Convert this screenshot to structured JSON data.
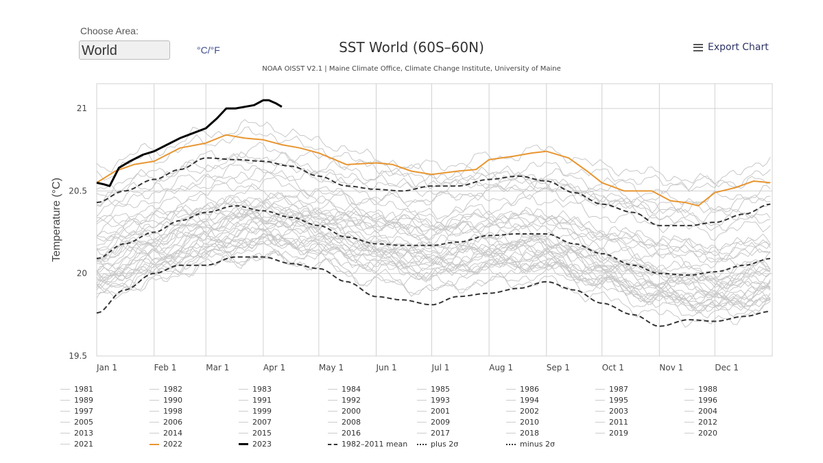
{
  "controls": {
    "choose_area_label": "Choose Area:",
    "area_value": "World",
    "unit_toggle": "°C/°F",
    "export_label": "Export Chart",
    "export_icon": "menu-icon"
  },
  "colors": {
    "year_line": "#c8c8c8",
    "highlight_2022": "#e8952f",
    "highlight_2023": "#000000",
    "stat_line": "#333333",
    "grid": "#d0d0d0"
  },
  "chart_data": {
    "type": "line",
    "title": "SST World (60S–60N)",
    "subtitle": "NOAA OISST V2.1 | Maine Climate Office, Climate Change Institute, University of Maine",
    "xlabel": "",
    "ylabel": "Temperature (°C)",
    "ylim": [
      19.5,
      21.15
    ],
    "xlim_days": [
      0,
      365
    ],
    "yticks": [
      19.5,
      20,
      20.5,
      21
    ],
    "ytick_labels": [
      "19.5",
      "20",
      "20.5",
      "21"
    ],
    "xticks_days": [
      0,
      31,
      59,
      90,
      120,
      151,
      181,
      212,
      243,
      273,
      304,
      334
    ],
    "xtick_labels": [
      "Jan 1",
      "Feb 1",
      "Mar 1",
      "Apr 1",
      "May 1",
      "Jun 1",
      "Jul 1",
      "Aug 1",
      "Sep 1",
      "Oct 1",
      "Nov 1",
      "Dec 1"
    ],
    "grid": true,
    "legend_position": "bottom",
    "x_days_monthly": [
      0,
      31,
      59,
      90,
      120,
      151,
      181,
      212,
      243,
      273,
      304,
      334,
      364
    ],
    "highlight_series": [
      {
        "name": "2022",
        "style": "solid-orange",
        "x": [
          0,
          10,
          20,
          31,
          45,
          59,
          70,
          80,
          90,
          100,
          110,
          120,
          135,
          151,
          160,
          170,
          181,
          195,
          205,
          212,
          225,
          235,
          243,
          255,
          265,
          273,
          285,
          300,
          310,
          318,
          325,
          334,
          345,
          355,
          364
        ],
        "y": [
          20.55,
          20.62,
          20.66,
          20.68,
          20.76,
          20.79,
          20.84,
          20.82,
          20.81,
          20.78,
          20.76,
          20.73,
          20.66,
          20.67,
          20.66,
          20.62,
          20.6,
          20.62,
          20.63,
          20.69,
          20.71,
          20.73,
          20.74,
          20.7,
          20.62,
          20.55,
          20.5,
          20.5,
          20.44,
          20.43,
          20.41,
          20.49,
          20.52,
          20.56,
          20.55
        ]
      },
      {
        "name": "2023",
        "style": "solid-black-thick",
        "x": [
          0,
          4,
          7,
          12,
          18,
          25,
          31,
          38,
          45,
          52,
          59,
          65,
          70,
          75,
          80,
          85,
          90,
          93,
          97,
          100
        ],
        "y": [
          20.55,
          20.54,
          20.53,
          20.64,
          20.68,
          20.72,
          20.74,
          20.78,
          20.82,
          20.85,
          20.88,
          20.94,
          21.0,
          21.0,
          21.01,
          21.02,
          21.05,
          21.05,
          21.03,
          21.01
        ]
      }
    ],
    "stat_series": [
      {
        "name": "1982–2011 mean",
        "style": "dashed",
        "x": [
          0,
          15,
          31,
          45,
          59,
          75,
          90,
          105,
          120,
          135,
          151,
          165,
          181,
          195,
          212,
          228,
          243,
          258,
          273,
          290,
          304,
          320,
          334,
          350,
          364
        ],
        "y": [
          20.09,
          20.18,
          20.25,
          20.32,
          20.37,
          20.41,
          20.38,
          20.34,
          20.29,
          20.22,
          20.18,
          20.17,
          20.17,
          20.19,
          20.23,
          20.24,
          20.24,
          20.18,
          20.12,
          20.05,
          20.0,
          19.99,
          20.01,
          20.05,
          20.09
        ]
      },
      {
        "name": "plus 2σ",
        "style": "dash-dot",
        "x": [
          0,
          15,
          31,
          45,
          59,
          75,
          90,
          105,
          120,
          135,
          151,
          165,
          181,
          195,
          212,
          228,
          243,
          258,
          273,
          290,
          304,
          320,
          334,
          350,
          364
        ],
        "y": [
          20.43,
          20.5,
          20.57,
          20.63,
          20.7,
          20.69,
          20.68,
          20.65,
          20.59,
          20.53,
          20.51,
          20.5,
          20.53,
          20.53,
          20.57,
          20.59,
          20.56,
          20.49,
          20.42,
          20.37,
          20.29,
          20.29,
          20.31,
          20.36,
          20.42
        ]
      },
      {
        "name": "minus 2σ",
        "style": "dash-dot",
        "x": [
          0,
          15,
          31,
          45,
          59,
          75,
          90,
          105,
          120,
          135,
          151,
          165,
          181,
          195,
          212,
          228,
          243,
          258,
          273,
          290,
          304,
          320,
          334,
          350,
          364
        ],
        "y": [
          19.76,
          19.9,
          20.0,
          20.05,
          20.05,
          20.1,
          20.1,
          20.06,
          20.03,
          19.95,
          19.86,
          19.84,
          19.81,
          19.86,
          19.88,
          19.91,
          19.95,
          19.9,
          19.82,
          19.75,
          19.68,
          19.72,
          19.71,
          19.74,
          19.77
        ]
      }
    ],
    "year_series": [
      {
        "name": "1981",
        "y": [
          19.85,
          19.95,
          20.05,
          20.1,
          20.05,
          19.95,
          19.9,
          19.95,
          20.0,
          19.9,
          19.8,
          19.75,
          19.8
        ]
      },
      {
        "name": "1982",
        "y": [
          19.9,
          20.0,
          20.1,
          20.15,
          20.1,
          20.0,
          19.95,
          20.0,
          20.05,
          19.95,
          19.85,
          19.8,
          19.85
        ]
      },
      {
        "name": "1983",
        "y": [
          20.15,
          20.25,
          20.35,
          20.35,
          20.25,
          20.15,
          20.1,
          20.15,
          20.15,
          20.05,
          19.95,
          19.9,
          19.95
        ]
      },
      {
        "name": "1984",
        "y": [
          19.95,
          20.05,
          20.15,
          20.2,
          20.15,
          20.05,
          20.0,
          20.05,
          20.05,
          19.95,
          19.85,
          19.8,
          19.85
        ]
      },
      {
        "name": "1985",
        "y": [
          19.9,
          20.0,
          20.1,
          20.1,
          20.05,
          19.95,
          19.9,
          19.95,
          19.95,
          19.85,
          19.75,
          19.7,
          19.8
        ]
      },
      {
        "name": "1986",
        "y": [
          19.95,
          20.05,
          20.15,
          20.2,
          20.15,
          20.1,
          20.05,
          20.1,
          20.15,
          20.05,
          20.0,
          19.95,
          20.05
        ]
      },
      {
        "name": "1987",
        "y": [
          20.1,
          20.2,
          20.3,
          20.35,
          20.3,
          20.25,
          20.2,
          20.25,
          20.25,
          20.15,
          20.05,
          20.0,
          20.05
        ]
      },
      {
        "name": "1988",
        "y": [
          20.1,
          20.2,
          20.25,
          20.3,
          20.2,
          20.1,
          20.0,
          20.05,
          20.05,
          19.95,
          19.85,
          19.8,
          19.85
        ]
      },
      {
        "name": "1989",
        "y": [
          19.85,
          19.95,
          20.05,
          20.1,
          20.1,
          20.05,
          20.0,
          20.05,
          20.1,
          20.0,
          19.9,
          19.85,
          19.9
        ]
      },
      {
        "name": "1990",
        "y": [
          20.0,
          20.1,
          20.2,
          20.25,
          20.25,
          20.15,
          20.1,
          20.15,
          20.2,
          20.1,
          20.0,
          19.95,
          20.05
        ]
      },
      {
        "name": "1991",
        "y": [
          20.05,
          20.15,
          20.25,
          20.3,
          20.25,
          20.15,
          20.1,
          20.15,
          20.15,
          20.05,
          19.95,
          19.95,
          20.0
        ]
      },
      {
        "name": "1992",
        "y": [
          20.15,
          20.25,
          20.35,
          20.4,
          20.3,
          20.15,
          20.05,
          20.05,
          20.05,
          19.95,
          19.85,
          19.8,
          19.85
        ]
      },
      {
        "name": "1993",
        "y": [
          20.0,
          20.1,
          20.2,
          20.25,
          20.2,
          20.1,
          20.05,
          20.1,
          20.1,
          20.0,
          19.9,
          19.85,
          19.9
        ]
      },
      {
        "name": "1994",
        "y": [
          20.0,
          20.1,
          20.2,
          20.25,
          20.25,
          20.15,
          20.1,
          20.15,
          20.2,
          20.1,
          20.05,
          20.0,
          20.05
        ]
      },
      {
        "name": "1995",
        "y": [
          20.1,
          20.2,
          20.3,
          20.35,
          20.3,
          20.2,
          20.15,
          20.15,
          20.15,
          20.05,
          19.95,
          19.9,
          19.95
        ]
      },
      {
        "name": "1996",
        "y": [
          19.95,
          20.05,
          20.15,
          20.2,
          20.15,
          20.05,
          20.0,
          20.05,
          20.05,
          19.95,
          19.85,
          19.85,
          19.9
        ]
      },
      {
        "name": "1997",
        "y": [
          20.0,
          20.1,
          20.2,
          20.3,
          20.35,
          20.35,
          20.35,
          20.45,
          20.5,
          20.45,
          20.4,
          20.4,
          20.45
        ]
      },
      {
        "name": "1998",
        "y": [
          20.5,
          20.6,
          20.65,
          20.7,
          20.6,
          20.45,
          20.3,
          20.25,
          20.2,
          20.05,
          19.95,
          19.9,
          19.95
        ]
      },
      {
        "name": "1999",
        "y": [
          19.95,
          20.05,
          20.15,
          20.2,
          20.15,
          20.05,
          20.0,
          20.05,
          20.05,
          19.95,
          19.85,
          19.8,
          19.85
        ]
      },
      {
        "name": "2000",
        "y": [
          19.9,
          20.0,
          20.1,
          20.2,
          20.15,
          20.1,
          20.05,
          20.1,
          20.1,
          20.0,
          19.9,
          19.85,
          19.9
        ]
      },
      {
        "name": "2001",
        "y": [
          20.05,
          20.15,
          20.25,
          20.3,
          20.3,
          20.2,
          20.15,
          20.2,
          20.2,
          20.1,
          20.0,
          19.95,
          20.0
        ]
      },
      {
        "name": "2002",
        "y": [
          20.15,
          20.25,
          20.35,
          20.4,
          20.35,
          20.3,
          20.25,
          20.3,
          20.3,
          20.2,
          20.15,
          20.1,
          20.15
        ]
      },
      {
        "name": "2003",
        "y": [
          20.25,
          20.35,
          20.4,
          20.45,
          20.4,
          20.3,
          20.25,
          20.3,
          20.3,
          20.2,
          20.1,
          20.05,
          20.1
        ]
      },
      {
        "name": "2004",
        "y": [
          20.2,
          20.3,
          20.35,
          20.4,
          20.35,
          20.3,
          20.25,
          20.3,
          20.3,
          20.2,
          20.15,
          20.1,
          20.15
        ]
      },
      {
        "name": "2005",
        "y": [
          20.25,
          20.35,
          20.45,
          20.5,
          20.45,
          20.35,
          20.3,
          20.35,
          20.35,
          20.25,
          20.15,
          20.1,
          20.15
        ]
      },
      {
        "name": "2006",
        "y": [
          20.1,
          20.2,
          20.3,
          20.35,
          20.35,
          20.3,
          20.25,
          20.3,
          20.35,
          20.25,
          20.2,
          20.15,
          20.2
        ]
      },
      {
        "name": "2007",
        "y": [
          20.3,
          20.35,
          20.4,
          20.4,
          20.3,
          20.2,
          20.1,
          20.1,
          20.05,
          19.95,
          19.85,
          19.8,
          19.85
        ]
      },
      {
        "name": "2008",
        "y": [
          19.95,
          20.05,
          20.15,
          20.2,
          20.2,
          20.15,
          20.15,
          20.2,
          20.2,
          20.1,
          20.0,
          19.95,
          20.0
        ]
      },
      {
        "name": "2009",
        "y": [
          20.1,
          20.2,
          20.3,
          20.35,
          20.35,
          20.35,
          20.35,
          20.4,
          20.45,
          20.35,
          20.3,
          20.25,
          20.3
        ]
      },
      {
        "name": "2010",
        "y": [
          20.35,
          20.45,
          20.55,
          20.6,
          20.5,
          20.35,
          20.2,
          20.15,
          20.1,
          20.0,
          19.9,
          19.85,
          19.9
        ]
      },
      {
        "name": "2011",
        "y": [
          19.95,
          20.05,
          20.15,
          20.2,
          20.2,
          20.15,
          20.15,
          20.2,
          20.2,
          20.1,
          20.0,
          19.95,
          20.0
        ]
      },
      {
        "name": "2012",
        "y": [
          20.05,
          20.15,
          20.25,
          20.35,
          20.35,
          20.3,
          20.3,
          20.35,
          20.35,
          20.25,
          20.2,
          20.15,
          20.2
        ]
      },
      {
        "name": "2013",
        "y": [
          20.2,
          20.3,
          20.4,
          20.45,
          20.4,
          20.3,
          20.3,
          20.35,
          20.35,
          20.25,
          20.2,
          20.15,
          20.2
        ]
      },
      {
        "name": "2014",
        "y": [
          20.2,
          20.3,
          20.4,
          20.45,
          20.45,
          20.45,
          20.45,
          20.5,
          20.5,
          20.45,
          20.4,
          20.35,
          20.4
        ]
      },
      {
        "name": "2015",
        "y": [
          20.4,
          20.5,
          20.55,
          20.6,
          20.6,
          20.55,
          20.55,
          20.6,
          20.65,
          20.6,
          20.55,
          20.55,
          20.6
        ]
      },
      {
        "name": "2016",
        "y": [
          20.65,
          20.75,
          20.85,
          20.9,
          20.8,
          20.7,
          20.6,
          20.6,
          20.55,
          20.45,
          20.35,
          20.3,
          20.35
        ]
      },
      {
        "name": "2017",
        "y": [
          20.4,
          20.5,
          20.6,
          20.65,
          20.6,
          20.55,
          20.5,
          20.55,
          20.55,
          20.45,
          20.35,
          20.3,
          20.35
        ]
      },
      {
        "name": "2018",
        "y": [
          20.3,
          20.4,
          20.5,
          20.55,
          20.5,
          20.45,
          20.45,
          20.5,
          20.55,
          20.5,
          20.45,
          20.45,
          20.5
        ]
      },
      {
        "name": "2019",
        "y": [
          20.5,
          20.6,
          20.7,
          20.75,
          20.7,
          20.65,
          20.65,
          20.7,
          20.75,
          20.65,
          20.6,
          20.55,
          20.55
        ]
      },
      {
        "name": "2020",
        "y": [
          20.6,
          20.7,
          20.8,
          20.85,
          20.75,
          20.65,
          20.55,
          20.55,
          20.55,
          20.45,
          20.4,
          20.4,
          20.45
        ]
      },
      {
        "name": "2021",
        "y": [
          20.45,
          20.55,
          20.65,
          20.7,
          20.65,
          20.6,
          20.55,
          20.6,
          20.6,
          20.55,
          20.5,
          20.55,
          20.7
        ]
      }
    ],
    "legend": [
      "1981",
      "1982",
      "1983",
      "1984",
      "1985",
      "1986",
      "1987",
      "1988",
      "1989",
      "1990",
      "1991",
      "1992",
      "1993",
      "1994",
      "1995",
      "1996",
      "1997",
      "1998",
      "1999",
      "2000",
      "2001",
      "2002",
      "2003",
      "2004",
      "2005",
      "2006",
      "2007",
      "2008",
      "2009",
      "2010",
      "2011",
      "2012",
      "2013",
      "2014",
      "2015",
      "2016",
      "2017",
      "2018",
      "2019",
      "2020",
      "2021",
      "2022",
      "2023",
      "1982–2011 mean",
      "plus 2σ",
      "minus 2σ"
    ]
  }
}
